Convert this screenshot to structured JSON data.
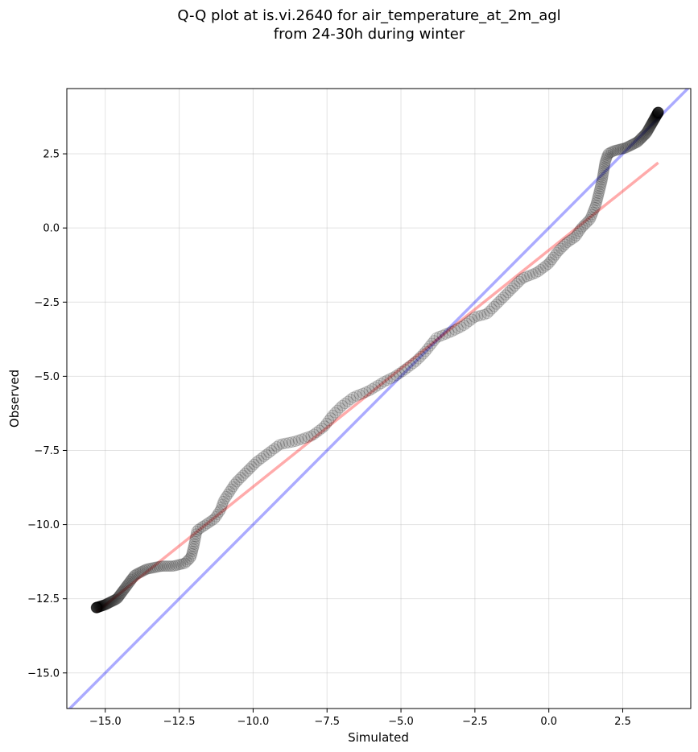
{
  "chart_data": {
    "type": "scatter",
    "title": "Q-Q plot at is.vi.2640 for air_temperature_at_2m_agl\nfrom 24-30h during winter",
    "xlabel": "Simulated",
    "ylabel": "Observed",
    "xlim": [
      -16.3,
      4.8
    ],
    "ylim": [
      -16.2,
      4.7
    ],
    "x_ticks": [
      -15.0,
      -12.5,
      -10.0,
      -7.5,
      -5.0,
      -2.5,
      0.0,
      2.5
    ],
    "y_ticks": [
      -15.0,
      -12.5,
      -10.0,
      -7.5,
      -5.0,
      -2.5,
      0.0,
      2.5
    ],
    "x_tick_labels": [
      "−15.0",
      "−12.5",
      "−10.0",
      "−7.5",
      "−5.0",
      "−2.5",
      "0.0",
      "2.5"
    ],
    "y_tick_labels": [
      "−15.0",
      "−12.5",
      "−10.0",
      "−7.5",
      "−5.0",
      "−2.5",
      "0.0",
      "2.5"
    ],
    "grid": true,
    "colors": {
      "points": "#000000",
      "fit_line": "#ff0000",
      "identity_line": "#0000ff",
      "grid": "#b0b0b0"
    },
    "quantile_curve": [
      [
        -15.3,
        -12.8
      ],
      [
        -15.0,
        -12.7
      ],
      [
        -14.6,
        -12.5
      ],
      [
        -14.3,
        -12.1
      ],
      [
        -14.0,
        -11.7
      ],
      [
        -13.6,
        -11.5
      ],
      [
        -13.1,
        -11.4
      ],
      [
        -12.7,
        -11.4
      ],
      [
        -12.3,
        -11.3
      ],
      [
        -12.1,
        -11.1
      ],
      [
        -12.0,
        -10.7
      ],
      [
        -11.9,
        -10.2
      ],
      [
        -11.6,
        -10.0
      ],
      [
        -11.3,
        -9.8
      ],
      [
        -11.1,
        -9.5
      ],
      [
        -11.0,
        -9.2
      ],
      [
        -10.8,
        -8.9
      ],
      [
        -10.6,
        -8.6
      ],
      [
        -10.3,
        -8.3
      ],
      [
        -9.9,
        -7.9
      ],
      [
        -9.5,
        -7.6
      ],
      [
        -9.1,
        -7.3
      ],
      [
        -8.6,
        -7.2
      ],
      [
        -8.0,
        -7.0
      ],
      [
        -7.6,
        -6.7
      ],
      [
        -7.3,
        -6.3
      ],
      [
        -7.0,
        -6.0
      ],
      [
        -6.6,
        -5.7
      ],
      [
        -6.1,
        -5.5
      ],
      [
        -5.6,
        -5.2
      ],
      [
        -5.2,
        -5.0
      ],
      [
        -4.9,
        -4.8
      ],
      [
        -4.5,
        -4.5
      ],
      [
        -4.2,
        -4.2
      ],
      [
        -3.8,
        -3.7
      ],
      [
        -3.3,
        -3.5
      ],
      [
        -2.9,
        -3.3
      ],
      [
        -2.5,
        -3.0
      ],
      [
        -2.1,
        -2.9
      ],
      [
        -1.7,
        -2.5
      ],
      [
        -1.3,
        -2.1
      ],
      [
        -0.9,
        -1.7
      ],
      [
        -0.4,
        -1.5
      ],
      [
        0.0,
        -1.2
      ],
      [
        0.3,
        -0.8
      ],
      [
        0.6,
        -0.5
      ],
      [
        0.9,
        -0.3
      ],
      [
        1.1,
        0.0
      ],
      [
        1.4,
        0.3
      ],
      [
        1.6,
        0.8
      ],
      [
        1.7,
        1.2
      ],
      [
        1.8,
        1.6
      ],
      [
        1.9,
        2.2
      ],
      [
        2.0,
        2.5
      ],
      [
        2.2,
        2.6
      ],
      [
        2.6,
        2.7
      ],
      [
        3.0,
        2.9
      ],
      [
        3.3,
        3.2
      ],
      [
        3.7,
        3.9
      ]
    ],
    "fit_line": [
      [
        -15.3,
        -12.95
      ],
      [
        3.7,
        2.2
      ]
    ],
    "identity_line": [
      [
        -16.3,
        -16.3
      ],
      [
        4.8,
        4.8
      ]
    ]
  }
}
